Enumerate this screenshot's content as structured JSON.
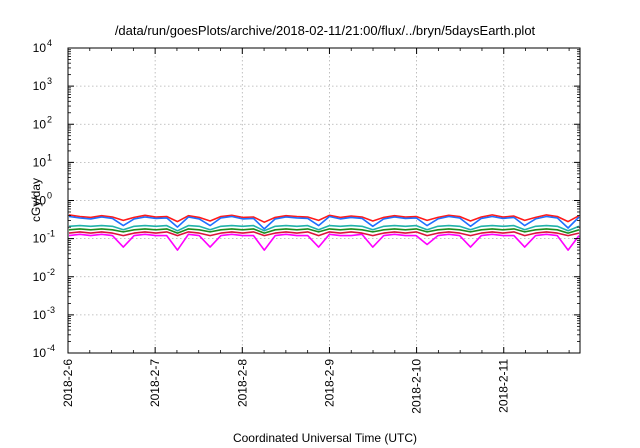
{
  "chart_data": {
    "type": "line",
    "title": "/data/run/goesPlots/archive/2018-02-11/21:00/flux/../bryn/5daysEarth.plot",
    "xlabel": "Coordinated Universal Time (UTC)",
    "ylabel": "cGy/day",
    "y_scale": "log",
    "ylim": [
      0.0001,
      10000
    ],
    "y_ticks": [
      {
        "mant": "10",
        "exp": "-4"
      },
      {
        "mant": "10",
        "exp": "-3"
      },
      {
        "mant": "10",
        "exp": "-2"
      },
      {
        "mant": "10",
        "exp": "-1"
      },
      {
        "mant": "10",
        "exp": "0"
      },
      {
        "mant": "10",
        "exp": "1"
      },
      {
        "mant": "10",
        "exp": "2"
      },
      {
        "mant": "10",
        "exp": "3"
      },
      {
        "mant": "10",
        "exp": "4"
      }
    ],
    "x_tick_labels": [
      "2018-2-6",
      "2018-2-7",
      "2018-2-8",
      "2018-2-9",
      "2018-2-10",
      "2018-2-11"
    ],
    "xlim": [
      "2018-02-06T00:00",
      "2018-02-11T21:00"
    ],
    "grid": true,
    "series": [
      {
        "color": "#ff00ff",
        "values": [
          0.12,
          0.13,
          0.12,
          0.13,
          0.12,
          0.06,
          0.12,
          0.13,
          0.12,
          0.12,
          0.05,
          0.13,
          0.12,
          0.06,
          0.12,
          0.13,
          0.12,
          0.12,
          0.05,
          0.12,
          0.13,
          0.12,
          0.12,
          0.06,
          0.13,
          0.12,
          0.12,
          0.13,
          0.06,
          0.12,
          0.13,
          0.12,
          0.12,
          0.07,
          0.12,
          0.13,
          0.12,
          0.06,
          0.12,
          0.13,
          0.12,
          0.12,
          0.06,
          0.12,
          0.13,
          0.12,
          0.05,
          0.12
        ]
      },
      {
        "color": "#dc143c",
        "values": [
          0.14,
          0.15,
          0.14,
          0.15,
          0.14,
          0.12,
          0.14,
          0.15,
          0.14,
          0.15,
          0.12,
          0.15,
          0.14,
          0.12,
          0.14,
          0.15,
          0.14,
          0.15,
          0.12,
          0.14,
          0.15,
          0.14,
          0.15,
          0.12,
          0.15,
          0.14,
          0.15,
          0.14,
          0.12,
          0.14,
          0.15,
          0.14,
          0.15,
          0.12,
          0.14,
          0.15,
          0.14,
          0.12,
          0.14,
          0.15,
          0.14,
          0.15,
          0.12,
          0.14,
          0.15,
          0.14,
          0.12,
          0.14
        ]
      },
      {
        "color": "#1e8c1e",
        "values": [
          0.17,
          0.18,
          0.17,
          0.18,
          0.17,
          0.15,
          0.17,
          0.18,
          0.17,
          0.18,
          0.14,
          0.18,
          0.17,
          0.15,
          0.17,
          0.18,
          0.17,
          0.18,
          0.14,
          0.17,
          0.18,
          0.17,
          0.18,
          0.15,
          0.18,
          0.17,
          0.18,
          0.17,
          0.15,
          0.17,
          0.18,
          0.17,
          0.18,
          0.15,
          0.17,
          0.18,
          0.17,
          0.15,
          0.17,
          0.18,
          0.17,
          0.18,
          0.15,
          0.17,
          0.18,
          0.17,
          0.14,
          0.17
        ]
      },
      {
        "color": "#20b2aa",
        "values": [
          0.21,
          0.22,
          0.21,
          0.22,
          0.21,
          0.17,
          0.21,
          0.22,
          0.21,
          0.22,
          0.16,
          0.22,
          0.21,
          0.17,
          0.21,
          0.22,
          0.21,
          0.22,
          0.16,
          0.21,
          0.22,
          0.21,
          0.22,
          0.17,
          0.22,
          0.21,
          0.22,
          0.21,
          0.17,
          0.21,
          0.22,
          0.21,
          0.22,
          0.17,
          0.21,
          0.22,
          0.21,
          0.17,
          0.21,
          0.22,
          0.21,
          0.22,
          0.17,
          0.21,
          0.22,
          0.21,
          0.16,
          0.21
        ]
      },
      {
        "color": "#ff1a1a",
        "values": [
          0.42,
          0.38,
          0.36,
          0.4,
          0.37,
          0.3,
          0.36,
          0.41,
          0.37,
          0.38,
          0.28,
          0.4,
          0.36,
          0.29,
          0.38,
          0.41,
          0.36,
          0.37,
          0.27,
          0.36,
          0.4,
          0.38,
          0.37,
          0.3,
          0.41,
          0.36,
          0.39,
          0.37,
          0.29,
          0.36,
          0.4,
          0.37,
          0.38,
          0.3,
          0.36,
          0.41,
          0.38,
          0.29,
          0.37,
          0.42,
          0.37,
          0.39,
          0.3,
          0.36,
          0.42,
          0.38,
          0.28,
          0.4
        ]
      },
      {
        "color": "#1e6fff",
        "values": [
          0.38,
          0.35,
          0.33,
          0.37,
          0.34,
          0.22,
          0.33,
          0.37,
          0.34,
          0.35,
          0.2,
          0.37,
          0.33,
          0.22,
          0.35,
          0.38,
          0.33,
          0.34,
          0.18,
          0.33,
          0.37,
          0.35,
          0.34,
          0.22,
          0.38,
          0.33,
          0.36,
          0.34,
          0.21,
          0.33,
          0.37,
          0.34,
          0.35,
          0.22,
          0.33,
          0.38,
          0.35,
          0.21,
          0.34,
          0.38,
          0.34,
          0.36,
          0.22,
          0.33,
          0.38,
          0.35,
          0.19,
          0.37
        ]
      }
    ]
  }
}
